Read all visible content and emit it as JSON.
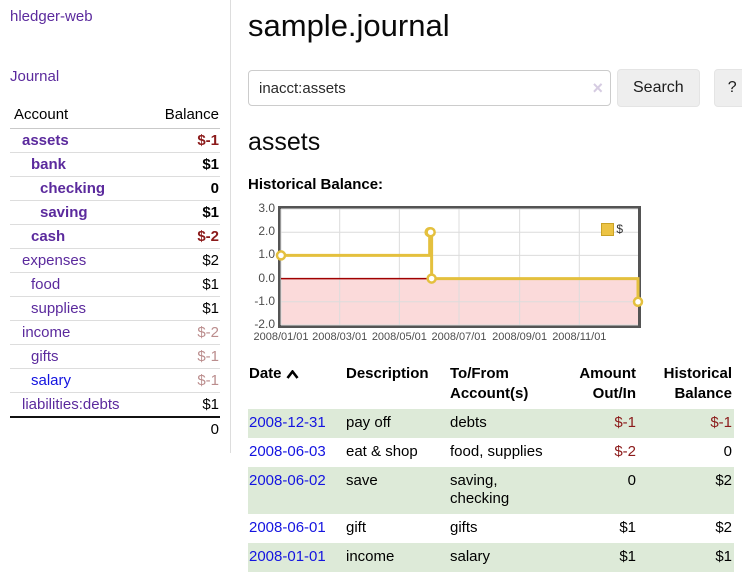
{
  "sidebar": {
    "brand": "hledger-web",
    "nav": {
      "journal": "Journal"
    },
    "accounts_table": {
      "col_account": "Account",
      "col_balance": "Balance",
      "rows": [
        {
          "name": "assets",
          "depth": 1,
          "bold": true,
          "link_color": "purple",
          "balance": "$-1",
          "balance_color": "neg"
        },
        {
          "name": "bank",
          "depth": 2,
          "bold": true,
          "link_color": "purple",
          "balance": "$1",
          "balance_color": "normal"
        },
        {
          "name": "checking",
          "depth": 3,
          "bold": true,
          "link_color": "purple",
          "balance": "0",
          "balance_color": "normal"
        },
        {
          "name": "saving",
          "depth": 3,
          "bold": true,
          "link_color": "purple",
          "balance": "$1",
          "balance_color": "normal"
        },
        {
          "name": "cash",
          "depth": 2,
          "bold": true,
          "link_color": "purple",
          "balance": "$-2",
          "balance_color": "neg"
        },
        {
          "name": "expenses",
          "depth": 1,
          "bold": false,
          "link_color": "purple",
          "balance": "$2",
          "balance_color": "normal"
        },
        {
          "name": "food",
          "depth": 2,
          "bold": false,
          "link_color": "purple",
          "balance": "$1",
          "balance_color": "normal"
        },
        {
          "name": "supplies",
          "depth": 2,
          "bold": false,
          "link_color": "purple",
          "balance": "$1",
          "balance_color": "normal"
        },
        {
          "name": "income",
          "depth": 1,
          "bold": false,
          "link_color": "purple",
          "balance": "$-2",
          "balance_color": "neg-faded"
        },
        {
          "name": "gifts",
          "depth": 2,
          "bold": false,
          "link_color": "purple",
          "balance": "$-1",
          "balance_color": "neg-faded"
        },
        {
          "name": "salary",
          "depth": 2,
          "bold": false,
          "link_color": "blue",
          "balance": "$-1",
          "balance_color": "neg-faded"
        },
        {
          "name": "liabilities:debts",
          "depth": 1,
          "bold": false,
          "link_color": "purple",
          "balance": "$1",
          "balance_color": "normal"
        }
      ],
      "total": "0"
    }
  },
  "main": {
    "title": "sample.journal",
    "search": {
      "value": "inacct:assets",
      "clear_icon": "×",
      "search_button": "Search",
      "help_button": "?"
    },
    "account_heading": "assets",
    "section_label": "Historical Balance:"
  },
  "chart_data": {
    "type": "line",
    "step": true,
    "title": "Historical Balance",
    "x_range": [
      "2008-01-01",
      "2008-12-31"
    ],
    "ylim": [
      -2,
      3
    ],
    "y_ticks": [
      "3.0",
      "2.0",
      "1.0",
      "0.0",
      "-1.0",
      "-2.0"
    ],
    "x_ticks": [
      {
        "date": "2008-01-01",
        "label": "2008/01/01"
      },
      {
        "date": "2008-03-01",
        "label": "2008/03/01"
      },
      {
        "date": "2008-05-01",
        "label": "2008/05/01"
      },
      {
        "date": "2008-07-01",
        "label": "2008/07/01"
      },
      {
        "date": "2008-09-01",
        "label": "2008/09/01"
      },
      {
        "date": "2008-11-01",
        "label": "2008/11/01"
      }
    ],
    "series": [
      {
        "name": "$",
        "color": "#E4C03E",
        "points": [
          [
            "2008-01-01",
            1
          ],
          [
            "2008-06-01",
            2
          ],
          [
            "2008-06-02",
            2
          ],
          [
            "2008-06-03",
            0
          ],
          [
            "2008-12-31",
            -1
          ]
        ]
      }
    ],
    "negative_region_color": "#FBDADA",
    "zero_line_color": "#A00000",
    "grid_color": "#DCDCDC",
    "legend": {
      "label": "$",
      "swatch_color": "#ECC344",
      "position": "top-right"
    }
  },
  "register": {
    "columns": [
      {
        "label": "Date",
        "align": "left",
        "sorted_asc": true
      },
      {
        "label": "Description",
        "align": "left"
      },
      {
        "label": "To/From Account(s)",
        "align": "left"
      },
      {
        "label": "Amount Out/In",
        "align": "right"
      },
      {
        "label": "Historical Balance",
        "align": "right"
      }
    ],
    "rows": [
      {
        "date": "2008-12-31",
        "description": "pay off",
        "accounts": "debts",
        "amount": "$-1",
        "amount_color": "neg",
        "balance": "$-1",
        "balance_color": "neg",
        "shaded": true
      },
      {
        "date": "2008-06-03",
        "description": "eat & shop",
        "accounts": "food, supplies",
        "amount": "$-2",
        "amount_color": "neg",
        "balance": "0",
        "balance_color": "normal",
        "shaded": false
      },
      {
        "date": "2008-06-02",
        "description": "save",
        "accounts": "saving, checking",
        "amount": "0",
        "amount_color": "normal",
        "balance": "$2",
        "balance_color": "normal",
        "shaded": true
      },
      {
        "date": "2008-06-01",
        "description": "gift",
        "accounts": "gifts",
        "amount": "$1",
        "amount_color": "normal",
        "balance": "$2",
        "balance_color": "normal",
        "shaded": false
      },
      {
        "date": "2008-01-01",
        "description": "income",
        "accounts": "salary",
        "amount": "$1",
        "amount_color": "normal",
        "balance": "$1",
        "balance_color": "normal",
        "shaded": true
      }
    ]
  },
  "colors": {
    "link_purple": "#5B2A9D",
    "link_blue": "#1414E0",
    "negative_strong": "#8B1A1A",
    "negative_faded": "#BB8D8D",
    "row_stripe_green": "#DDEAD8",
    "chart_line_gold": "#E4C03E"
  }
}
